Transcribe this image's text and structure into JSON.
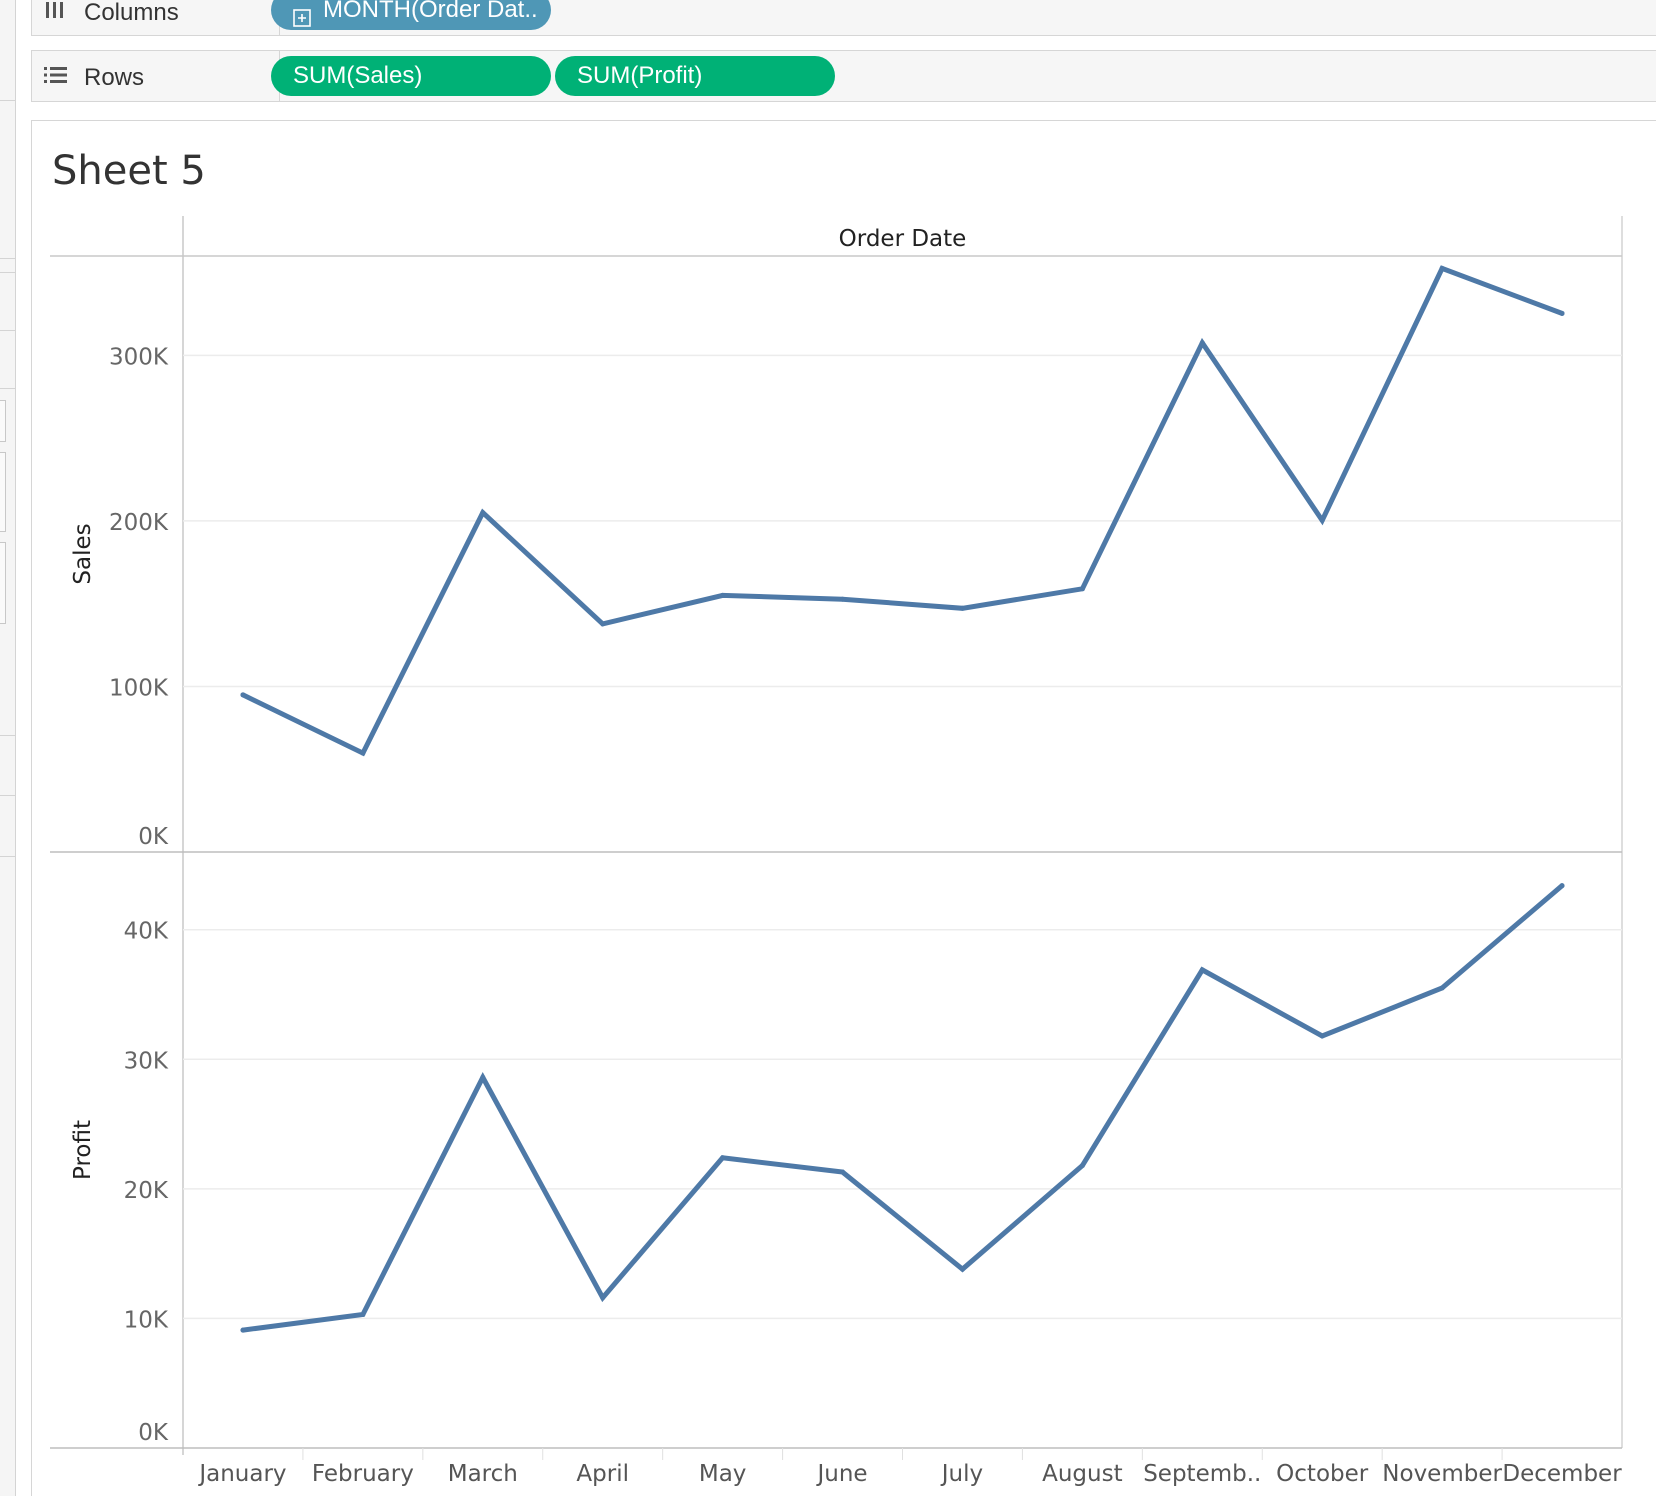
{
  "shelves": {
    "columns": {
      "label": "Columns",
      "icon": "columns-icon",
      "pills": [
        {
          "text": "MONTH(Order Dat..",
          "color": "#4f97b6",
          "expand_icon": "plus-box-icon"
        }
      ]
    },
    "rows": {
      "label": "Rows",
      "icon": "rows-icon",
      "pills": [
        {
          "text": "SUM(Sales)",
          "color": "#00b176"
        },
        {
          "text": "SUM(Profit)",
          "color": "#00b176"
        }
      ]
    }
  },
  "sheet": {
    "title": "Sheet 5"
  },
  "chart_data": {
    "type": "line",
    "header": "Order Date",
    "categories": [
      "January",
      "February",
      "March",
      "April",
      "May",
      "June",
      "July",
      "August",
      "Septemb..",
      "October",
      "November",
      "December"
    ],
    "line_color": "#4e79a7",
    "grid": true,
    "panes": [
      {
        "ylabel": "Sales",
        "ylim": [
          0,
          360000
        ],
        "ticks": [
          0,
          100000,
          200000,
          300000
        ],
        "tick_labels": [
          "0K",
          "100K",
          "200K",
          "300K"
        ],
        "series": [
          {
            "values": [
              94900,
              59750,
              205000,
              137800,
              155000,
              152700,
              147200,
              159000,
              307600,
              200300,
              352500,
              325300
            ]
          }
        ]
      },
      {
        "ylabel": "Profit",
        "ylim": [
          0,
          46000
        ],
        "ticks": [
          0,
          10000,
          20000,
          30000,
          40000
        ],
        "tick_labels": [
          "0K",
          "10K",
          "20K",
          "30K",
          "40K"
        ],
        "series": [
          {
            "values": [
              9100,
              10300,
              28600,
              11600,
              22400,
              21300,
              13800,
              21800,
              36900,
              31800,
              35500,
              43400
            ]
          }
        ]
      }
    ]
  }
}
